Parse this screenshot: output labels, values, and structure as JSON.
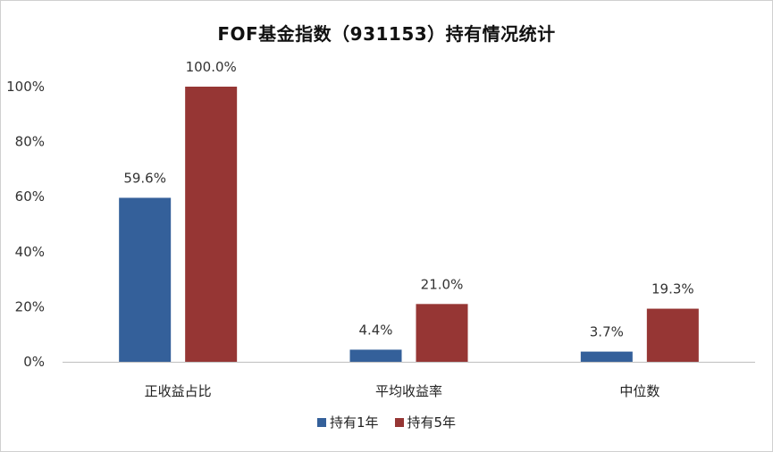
{
  "chart_data": {
    "type": "bar",
    "title": "FOF基金指数（931153）持有情况统计",
    "categories": [
      "正收益占比",
      "平均收益率",
      "中位数"
    ],
    "series": [
      {
        "name": "持有1年",
        "values": [
          59.6,
          4.4,
          3.7
        ],
        "labels": [
          "59.6%",
          "4.4%",
          "3.7%"
        ],
        "color": "#34609a"
      },
      {
        "name": "持有5年",
        "values": [
          100.0,
          21.0,
          19.3
        ],
        "labels": [
          "100.0%",
          "21.0%",
          "19.3%"
        ],
        "color": "#963634"
      }
    ],
    "ylim": [
      0,
      100
    ],
    "yticks": [
      "0%",
      "20%",
      "40%",
      "60%",
      "80%",
      "100%"
    ],
    "grid": false,
    "legend": "bottom"
  }
}
